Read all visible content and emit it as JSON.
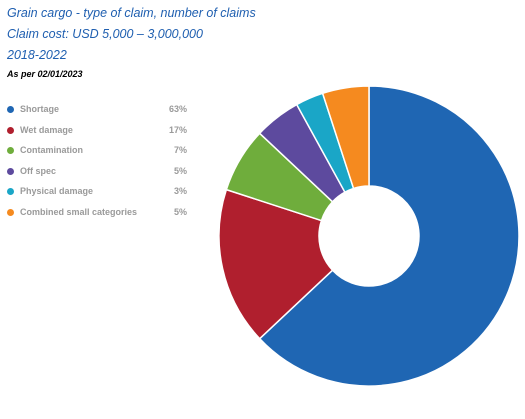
{
  "header": {
    "title": "Grain cargo - type of claim, number of claims",
    "subtitle": "Claim cost: USD 5,000 – 3,000,000",
    "period": "2018-2022",
    "as_of": "As per 02/01/2023"
  },
  "legend": {
    "items": [
      {
        "label": "Shortage",
        "pct": "63%",
        "color": "#1f66b3"
      },
      {
        "label": "Wet damage",
        "pct": "17%",
        "color": "#b01f2e"
      },
      {
        "label": "Contamination",
        "pct": "7%",
        "color": "#6fad3c"
      },
      {
        "label": "Off spec",
        "pct": "5%",
        "color": "#5d4a9e"
      },
      {
        "label": "Physical damage",
        "pct": "3%",
        "color": "#1aa6c7"
      },
      {
        "label": "Combined small categories",
        "pct": "5%",
        "color": "#f58a1f"
      }
    ]
  },
  "chart_data": {
    "type": "pie",
    "donut": true,
    "title": "Grain cargo - type of claim, number of claims",
    "subtitle": "Claim cost: USD 5,000 – 3,000,000",
    "categories": [
      "Shortage",
      "Wet damage",
      "Contamination",
      "Off spec",
      "Physical damage",
      "Combined small categories"
    ],
    "values": [
      63,
      17,
      7,
      5,
      3,
      5
    ],
    "unit": "%",
    "colors": [
      "#1f66b3",
      "#b01f2e",
      "#6fad3c",
      "#5d4a9e",
      "#1aa6c7",
      "#f58a1f"
    ],
    "start_angle": "12 o'clock",
    "direction": "clockwise",
    "legend_position": "left"
  }
}
